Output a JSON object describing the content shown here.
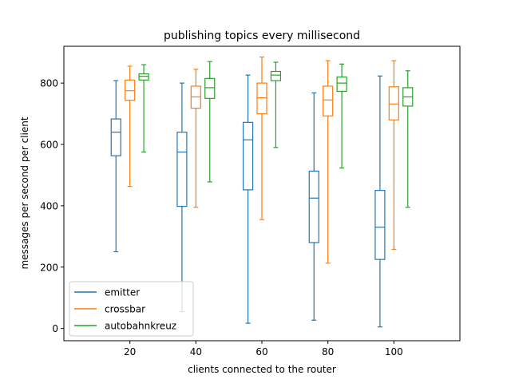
{
  "chart_data": {
    "type": "box",
    "title": "publishing topics every millisecond",
    "xlabel": "clients connected to the router",
    "ylabel": "messages per second per client",
    "categories": [
      "20",
      "40",
      "60",
      "80",
      "100"
    ],
    "x_ticks": [
      20,
      40,
      60,
      80,
      100
    ],
    "y_ticks": [
      0,
      200,
      400,
      600,
      800
    ],
    "xlim": [
      0,
      120
    ],
    "ylim": [
      -40,
      920
    ],
    "grid": false,
    "legend_position": "lower-left",
    "series": [
      {
        "name": "emitter",
        "color": "#1f77b4",
        "boxes": [
          {
            "min": 250,
            "q1": 563,
            "median": 640,
            "q3": 683,
            "max": 808
          },
          {
            "min": 55,
            "q1": 398,
            "median": 575,
            "q3": 640,
            "max": 800
          },
          {
            "min": 17,
            "q1": 452,
            "median": 615,
            "q3": 672,
            "max": 826
          },
          {
            "min": 27,
            "q1": 280,
            "median": 425,
            "q3": 513,
            "max": 768
          },
          {
            "min": 5,
            "q1": 225,
            "median": 330,
            "q3": 450,
            "max": 823
          }
        ]
      },
      {
        "name": "crossbar",
        "color": "#ff7f0e",
        "boxes": [
          {
            "min": 463,
            "q1": 744,
            "median": 775,
            "q3": 810,
            "max": 855
          },
          {
            "min": 395,
            "q1": 718,
            "median": 755,
            "q3": 790,
            "max": 845
          },
          {
            "min": 355,
            "q1": 700,
            "median": 752,
            "q3": 800,
            "max": 885
          },
          {
            "min": 213,
            "q1": 693,
            "median": 745,
            "q3": 790,
            "max": 873
          },
          {
            "min": 258,
            "q1": 680,
            "median": 732,
            "q3": 788,
            "max": 873
          }
        ]
      },
      {
        "name": "autobahnkreuz",
        "color": "#2ca02c",
        "boxes": [
          {
            "min": 575,
            "q1": 810,
            "median": 822,
            "q3": 830,
            "max": 860
          },
          {
            "min": 478,
            "q1": 750,
            "median": 785,
            "q3": 815,
            "max": 870
          },
          {
            "min": 590,
            "q1": 808,
            "median": 826,
            "q3": 838,
            "max": 868
          },
          {
            "min": 523,
            "q1": 773,
            "median": 800,
            "q3": 820,
            "max": 862
          },
          {
            "min": 395,
            "q1": 725,
            "median": 755,
            "q3": 785,
            "max": 840
          }
        ]
      }
    ]
  }
}
